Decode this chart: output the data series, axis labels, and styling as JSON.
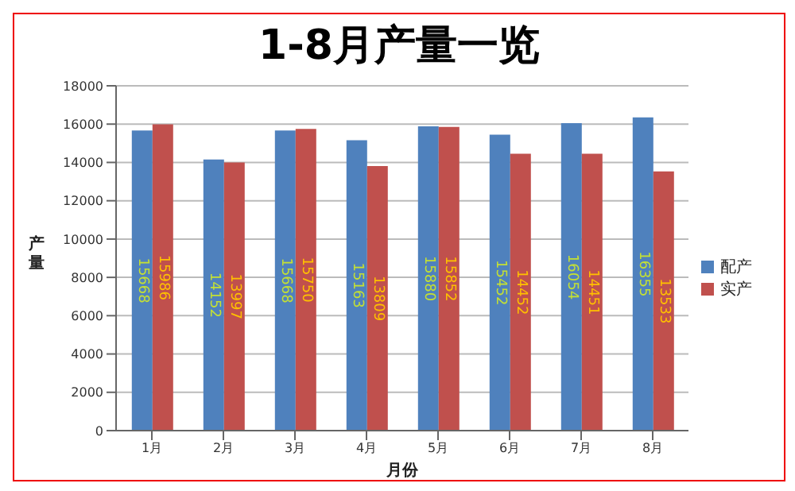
{
  "chart_data": {
    "type": "bar",
    "title": "1-8月产量一览",
    "xlabel": "月份",
    "ylabel": "产量",
    "categories": [
      "1月",
      "2月",
      "3月",
      "4月",
      "5月",
      "6月",
      "7月",
      "8月"
    ],
    "series": [
      {
        "name": "配产",
        "color": "#4f81bd",
        "values": [
          15668,
          14152,
          15668,
          15163,
          15880,
          15452,
          16054,
          16355
        ]
      },
      {
        "name": "实产",
        "color": "#c0504d",
        "values": [
          15986,
          13997,
          15750,
          13809,
          15852,
          14452,
          14451,
          13533
        ]
      }
    ],
    "ylim": [
      0,
      18000
    ],
    "yticks": [
      0,
      2000,
      4000,
      6000,
      8000,
      10000,
      12000,
      14000,
      16000,
      18000
    ],
    "grid": "y",
    "legend": "right",
    "data_labels": true
  }
}
